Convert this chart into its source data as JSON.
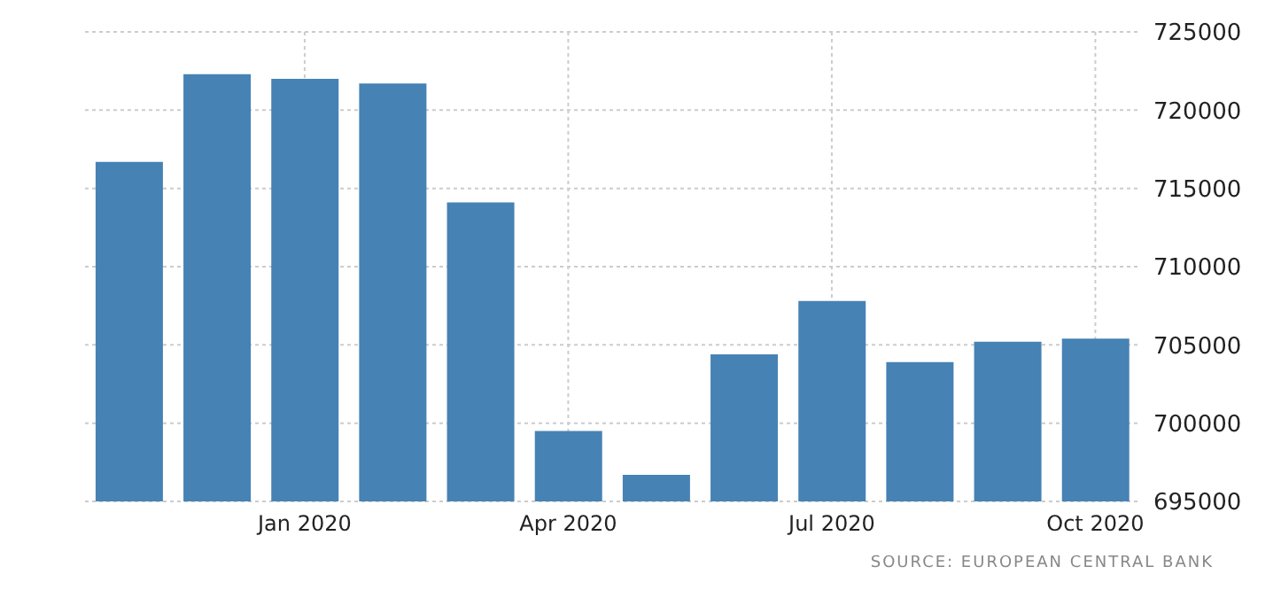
{
  "chart_data": {
    "type": "bar",
    "categories": [
      null,
      null,
      "Jan 2020",
      null,
      null,
      "Apr 2020",
      null,
      null,
      "Jul 2020",
      null,
      null,
      "Oct 2020"
    ],
    "values": [
      716700,
      722300,
      722000,
      721700,
      714100,
      699500,
      696700,
      704400,
      707800,
      703900,
      705200,
      705400
    ],
    "color": "#4682b4",
    "ylim": [
      695000,
      725000
    ],
    "yticks": [
      695000,
      700000,
      705000,
      710000,
      715000,
      720000,
      725000
    ],
    "grid": true,
    "annotations": [
      "SOURCE: EUROPEAN CENTRAL BANK"
    ]
  }
}
